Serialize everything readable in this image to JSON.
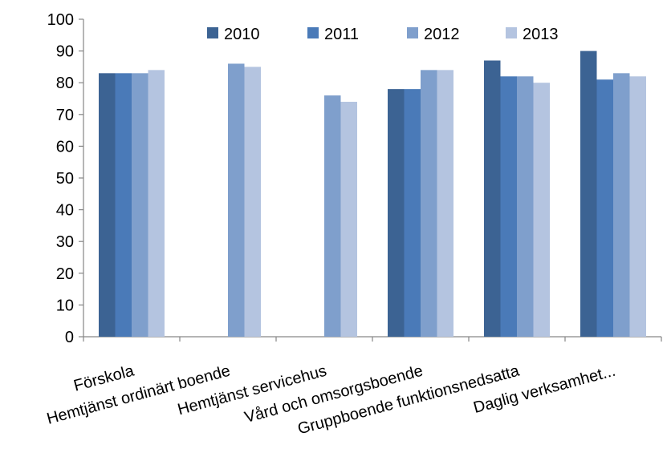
{
  "chart_data": {
    "type": "bar",
    "title": "",
    "xlabel": "",
    "ylabel": "",
    "ylim": [
      0,
      100
    ],
    "yticks": [
      0,
      10,
      20,
      30,
      40,
      50,
      60,
      70,
      80,
      90,
      100
    ],
    "grid": false,
    "legend_position": "top",
    "categories": [
      "Förskola",
      "Hemtjänst ordinärt boende",
      "Hemtjänst servicehus",
      "Vård och omsorgsboende",
      "Gruppboende funktionsnedsatta",
      "Daglig verksamhet..."
    ],
    "series": [
      {
        "name": "2010",
        "color": "#3c6393",
        "values": [
          83,
          null,
          null,
          78,
          87,
          90
        ]
      },
      {
        "name": "2011",
        "color": "#4a7ab8",
        "values": [
          83,
          null,
          null,
          78,
          82,
          81
        ]
      },
      {
        "name": "2012",
        "color": "#7f9fcc",
        "values": [
          83,
          86,
          76,
          84,
          82,
          83
        ]
      },
      {
        "name": "2013",
        "color": "#b4c4e0",
        "values": [
          84,
          85,
          74,
          84,
          80,
          82
        ]
      }
    ]
  }
}
